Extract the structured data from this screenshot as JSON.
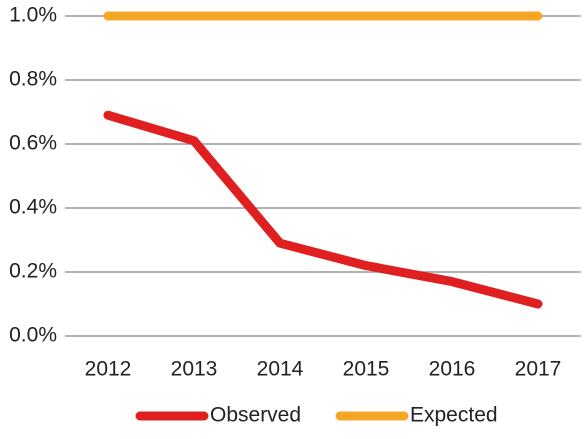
{
  "chart_data": {
    "type": "line",
    "categories": [
      "2012",
      "2013",
      "2014",
      "2015",
      "2016",
      "2017"
    ],
    "series": [
      {
        "name": "Observed",
        "color": "#e02020",
        "values": [
          0.69,
          0.61,
          0.29,
          0.22,
          0.17,
          0.1
        ]
      },
      {
        "name": "Expected",
        "color": "#f5a623",
        "values": [
          1.0,
          1.0,
          1.0,
          1.0,
          1.0,
          1.0
        ]
      }
    ],
    "ylim": [
      0,
      1.0
    ],
    "yticks": [
      {
        "value": 0,
        "label": "0.0%"
      },
      {
        "value": 0.2,
        "label": "0.2%"
      },
      {
        "value": 0.4,
        "label": "0.4%"
      },
      {
        "value": 0.6,
        "label": "0.6%"
      },
      {
        "value": 0.8,
        "label": "0.8%"
      },
      {
        "value": 1.0,
        "label": "1.0%"
      }
    ],
    "grid": true,
    "legend": "bottom"
  }
}
